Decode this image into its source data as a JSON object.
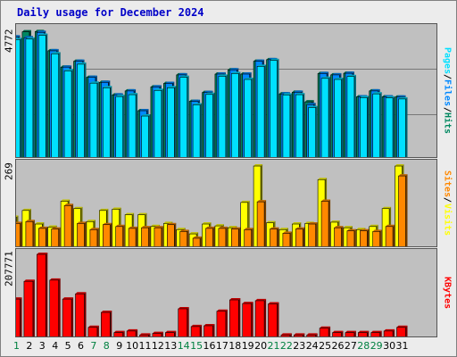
{
  "window": {
    "title": "Daily usage for December 2024"
  },
  "colors": {
    "title": "#0000c8",
    "hits": "#00e0ff",
    "files": "#0088ff",
    "pages": "#008860",
    "visits": "#ffff00",
    "sites": "#ff8800",
    "kbytes": "#ff0000",
    "weekend_label": "#008040",
    "weekday_label": "#000000"
  },
  "chart_data": [
    {
      "type": "bar",
      "ymax_label": "4772",
      "ylim": [
        0,
        4772
      ],
      "grid": true,
      "legend": [
        "Pages",
        "/",
        "Files",
        "/",
        "Hits"
      ],
      "legend_colors": [
        "#00e0ff",
        "#000000",
        "#0088ff",
        "#000000",
        "#008860"
      ],
      "categories": [
        "1",
        "2",
        "3",
        "4",
        "5",
        "6",
        "7",
        "8",
        "9",
        "10",
        "11",
        "12",
        "13",
        "14",
        "15",
        "16",
        "17",
        "18",
        "19",
        "20",
        "21",
        "22",
        "23",
        "24",
        "25",
        "26",
        "27",
        "28",
        "29",
        "30",
        "31"
      ],
      "series": [
        {
          "name": "Hits",
          "values": [
            4560,
            4750,
            4760,
            4040,
            3430,
            3650,
            3050,
            2860,
            2390,
            2540,
            1800,
            2690,
            2820,
            3140,
            2150,
            2480,
            3170,
            3330,
            3170,
            3650,
            3710,
            2430,
            2490,
            2130,
            3190,
            3140,
            3200,
            2320,
            2540,
            2320,
            2310
          ]
        },
        {
          "name": "Files",
          "values": [
            4560,
            4530,
            4730,
            4040,
            3430,
            3650,
            3050,
            2860,
            2390,
            2540,
            1800,
            2690,
            2820,
            3140,
            2150,
            2480,
            3170,
            3330,
            3170,
            3650,
            3710,
            2430,
            2490,
            2030,
            3190,
            3140,
            3200,
            2320,
            2540,
            2320,
            2310
          ]
        },
        {
          "name": "Pages",
          "values": [
            4460,
            4480,
            4620,
            3930,
            3290,
            3540,
            2830,
            2660,
            2330,
            2400,
            1600,
            2560,
            2660,
            3050,
            2020,
            2410,
            3090,
            3190,
            2970,
            3460,
            3680,
            2390,
            2400,
            1920,
            3010,
            2970,
            3080,
            2290,
            2430,
            2280,
            2240
          ]
        }
      ]
    },
    {
      "type": "bar",
      "ymax_label": "269",
      "ylim": [
        0,
        269
      ],
      "legend": [
        "Sites",
        "/",
        "Visits"
      ],
      "legend_colors": [
        "#ff8800",
        "#000000",
        "#ffff00"
      ],
      "categories": [
        "1",
        "2",
        "3",
        "4",
        "5",
        "6",
        "7",
        "8",
        "9",
        "10",
        "11",
        "12",
        "13",
        "14",
        "15",
        "16",
        "17",
        "18",
        "19",
        "20",
        "21",
        "22",
        "23",
        "24",
        "25",
        "26",
        "27",
        "28",
        "29",
        "30",
        "31"
      ],
      "series": [
        {
          "name": "Visits",
          "values": [
            100,
            122,
            78,
            68,
            152,
            128,
            86,
            122,
            126,
            108,
            108,
            70,
            80,
            60,
            46,
            78,
            72,
            66,
            148,
            266,
            82,
            60,
            78,
            80,
            222,
            84,
            66,
            60,
            70,
            128,
            266
          ]
        },
        {
          "name": "Sites",
          "values": [
            80,
            86,
            64,
            62,
            138,
            80,
            60,
            76,
            70,
            64,
            66,
            66,
            76,
            54,
            32,
            64,
            64,
            62,
            60,
            150,
            62,
            48,
            62,
            78,
            152,
            66,
            56,
            56,
            54,
            70,
            234
          ]
        }
      ]
    },
    {
      "type": "bar",
      "ymax_label": "207771",
      "ylim": [
        0,
        207771
      ],
      "legend": [
        "KBytes"
      ],
      "legend_colors": [
        "#ff0000"
      ],
      "categories": [
        "1",
        "2",
        "3",
        "4",
        "5",
        "6",
        "7",
        "8",
        "9",
        "10",
        "11",
        "12",
        "13",
        "14",
        "15",
        "16",
        "17",
        "18",
        "19",
        "20",
        "21",
        "22",
        "23",
        "24",
        "25",
        "26",
        "27",
        "28",
        "29",
        "30",
        "31"
      ],
      "series": [
        {
          "name": "KBytes",
          "values": [
            97000,
            141000,
            207771,
            144000,
            97000,
            110000,
            27000,
            64000,
            14000,
            18000,
            8000,
            12000,
            14000,
            73000,
            29000,
            31000,
            67000,
            95000,
            86000,
            93000,
            85000,
            8000,
            8000,
            8000,
            25000,
            14000,
            14000,
            14000,
            14000,
            18000,
            27000
          ]
        }
      ]
    }
  ],
  "x_axis": {
    "days": [
      "1",
      "2",
      "3",
      "4",
      "5",
      "6",
      "7",
      "8",
      "9",
      "10",
      "11",
      "12",
      "13",
      "14",
      "15",
      "16",
      "17",
      "18",
      "19",
      "20",
      "21",
      "22",
      "23",
      "24",
      "25",
      "26",
      "27",
      "28",
      "29",
      "30",
      "31"
    ],
    "weekend": [
      true,
      false,
      false,
      false,
      false,
      false,
      true,
      true,
      false,
      false,
      false,
      false,
      false,
      true,
      true,
      false,
      false,
      false,
      false,
      false,
      true,
      true,
      false,
      false,
      false,
      false,
      false,
      true,
      true,
      false,
      false
    ]
  }
}
